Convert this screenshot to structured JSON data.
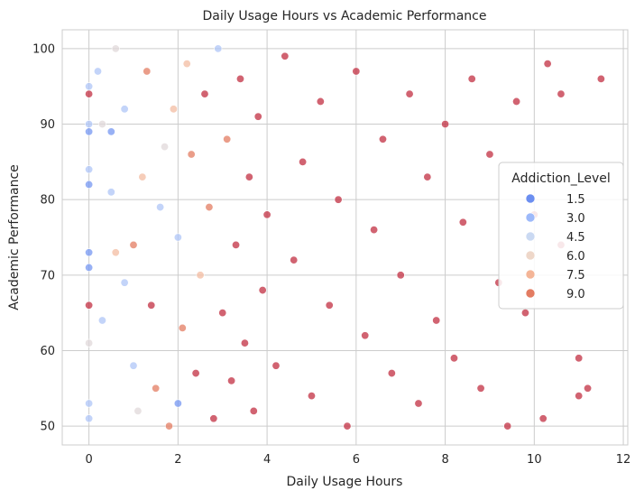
{
  "chart_data": {
    "type": "scatter",
    "title": "Daily Usage Hours vs Academic Performance",
    "xlabel": "Daily Usage Hours",
    "ylabel": "Academic Performance",
    "xlim": [
      -0.6,
      12.1
    ],
    "ylim": [
      47.5,
      102.5
    ],
    "x_ticks": [
      0,
      2,
      4,
      6,
      8,
      10,
      12
    ],
    "y_ticks": [
      50,
      60,
      70,
      80,
      90,
      100
    ],
    "grid": true,
    "legend": {
      "title": "Addiction_Level",
      "placement": "right",
      "entries": [
        {
          "label": "1.5",
          "color": "#6b8ef0"
        },
        {
          "label": "3.0",
          "color": "#9db9fa"
        },
        {
          "label": "4.5",
          "color": "#cad9f2"
        },
        {
          "label": "6.0",
          "color": "#eed7c9"
        },
        {
          "label": "7.5",
          "color": "#f4b597"
        },
        {
          "label": "9.0",
          "color": "#e37c62"
        }
      ]
    },
    "color_scale": {
      "name": "coolwarm",
      "stops": [
        "#3b4cc0",
        "#6b8ef0",
        "#9db9fa",
        "#cad9f2",
        "#eed7c9",
        "#f4b597",
        "#e37c62",
        "#c43a48",
        "#b40426"
      ],
      "domain": [
        0,
        10
      ]
    },
    "points": [
      {
        "x": 0.0,
        "y": 51,
        "level": 3.0
      },
      {
        "x": 0.0,
        "y": 53,
        "level": 3.0
      },
      {
        "x": 0.0,
        "y": 61,
        "level": 4.5
      },
      {
        "x": 0.0,
        "y": 66,
        "level": 9.0
      },
      {
        "x": 0.0,
        "y": 71,
        "level": 1.5
      },
      {
        "x": 0.0,
        "y": 73,
        "level": 1.5
      },
      {
        "x": 0.0,
        "y": 82,
        "level": 1.5
      },
      {
        "x": 0.0,
        "y": 84,
        "level": 3.0
      },
      {
        "x": 0.0,
        "y": 89,
        "level": 1.5
      },
      {
        "x": 0.0,
        "y": 90,
        "level": 3.0
      },
      {
        "x": 0.0,
        "y": 94,
        "level": 9.0
      },
      {
        "x": 0.0,
        "y": 95,
        "level": 3.0
      },
      {
        "x": 0.2,
        "y": 97,
        "level": 3.0
      },
      {
        "x": 0.3,
        "y": 64,
        "level": 3.0
      },
      {
        "x": 0.3,
        "y": 90,
        "level": 4.5
      },
      {
        "x": 0.5,
        "y": 89,
        "level": 1.5
      },
      {
        "x": 0.5,
        "y": 81,
        "level": 3.0
      },
      {
        "x": 0.6,
        "y": 100,
        "level": 4.5
      },
      {
        "x": 0.6,
        "y": 73,
        "level": 6.0
      },
      {
        "x": 0.8,
        "y": 69,
        "level": 3.0
      },
      {
        "x": 0.8,
        "y": 92,
        "level": 3.0
      },
      {
        "x": 1.0,
        "y": 58,
        "level": 3.0
      },
      {
        "x": 1.0,
        "y": 74,
        "level": 7.5
      },
      {
        "x": 1.1,
        "y": 52,
        "level": 4.5
      },
      {
        "x": 1.2,
        "y": 83,
        "level": 6.0
      },
      {
        "x": 1.3,
        "y": 97,
        "level": 7.5
      },
      {
        "x": 1.4,
        "y": 66,
        "level": 9.0
      },
      {
        "x": 1.5,
        "y": 55,
        "level": 7.5
      },
      {
        "x": 1.6,
        "y": 79,
        "level": 3.0
      },
      {
        "x": 1.7,
        "y": 87,
        "level": 4.5
      },
      {
        "x": 1.8,
        "y": 50,
        "level": 7.5
      },
      {
        "x": 1.9,
        "y": 92,
        "level": 6.0
      },
      {
        "x": 2.0,
        "y": 53,
        "level": 1.5
      },
      {
        "x": 2.0,
        "y": 75,
        "level": 3.0
      },
      {
        "x": 2.1,
        "y": 63,
        "level": 7.5
      },
      {
        "x": 2.2,
        "y": 98,
        "level": 6.0
      },
      {
        "x": 2.3,
        "y": 86,
        "level": 7.5
      },
      {
        "x": 2.4,
        "y": 57,
        "level": 9.0
      },
      {
        "x": 2.5,
        "y": 70,
        "level": 6.0
      },
      {
        "x": 2.6,
        "y": 94,
        "level": 9.0
      },
      {
        "x": 2.7,
        "y": 79,
        "level": 7.5
      },
      {
        "x": 2.8,
        "y": 51,
        "level": 9.0
      },
      {
        "x": 2.9,
        "y": 100,
        "level": 3.0
      },
      {
        "x": 3.0,
        "y": 65,
        "level": 9.0
      },
      {
        "x": 3.1,
        "y": 88,
        "level": 7.5
      },
      {
        "x": 3.2,
        "y": 56,
        "level": 9.0
      },
      {
        "x": 3.3,
        "y": 74,
        "level": 9.0
      },
      {
        "x": 3.4,
        "y": 96,
        "level": 9.0
      },
      {
        "x": 3.5,
        "y": 61,
        "level": 9.0
      },
      {
        "x": 3.6,
        "y": 83,
        "level": 9.0
      },
      {
        "x": 3.7,
        "y": 52,
        "level": 9.0
      },
      {
        "x": 3.8,
        "y": 91,
        "level": 9.0
      },
      {
        "x": 3.9,
        "y": 68,
        "level": 9.0
      },
      {
        "x": 4.0,
        "y": 78,
        "level": 9.0
      },
      {
        "x": 4.2,
        "y": 58,
        "level": 9.0
      },
      {
        "x": 4.4,
        "y": 99,
        "level": 9.0
      },
      {
        "x": 4.6,
        "y": 72,
        "level": 9.0
      },
      {
        "x": 4.8,
        "y": 85,
        "level": 9.0
      },
      {
        "x": 5.0,
        "y": 54,
        "level": 9.0
      },
      {
        "x": 5.2,
        "y": 93,
        "level": 9.0
      },
      {
        "x": 5.4,
        "y": 66,
        "level": 9.0
      },
      {
        "x": 5.6,
        "y": 80,
        "level": 9.0
      },
      {
        "x": 5.8,
        "y": 50,
        "level": 9.0
      },
      {
        "x": 6.0,
        "y": 97,
        "level": 9.0
      },
      {
        "x": 6.2,
        "y": 62,
        "level": 9.0
      },
      {
        "x": 6.4,
        "y": 76,
        "level": 9.0
      },
      {
        "x": 6.6,
        "y": 88,
        "level": 9.0
      },
      {
        "x": 6.8,
        "y": 57,
        "level": 9.0
      },
      {
        "x": 7.0,
        "y": 70,
        "level": 9.0
      },
      {
        "x": 7.2,
        "y": 94,
        "level": 9.0
      },
      {
        "x": 7.4,
        "y": 53,
        "level": 9.0
      },
      {
        "x": 7.6,
        "y": 83,
        "level": 9.0
      },
      {
        "x": 7.8,
        "y": 64,
        "level": 9.0
      },
      {
        "x": 8.0,
        "y": 90,
        "level": 9.0
      },
      {
        "x": 8.2,
        "y": 59,
        "level": 9.0
      },
      {
        "x": 8.4,
        "y": 77,
        "level": 9.0
      },
      {
        "x": 8.6,
        "y": 96,
        "level": 9.0
      },
      {
        "x": 8.8,
        "y": 55,
        "level": 9.0
      },
      {
        "x": 9.0,
        "y": 86,
        "level": 9.0
      },
      {
        "x": 9.2,
        "y": 69,
        "level": 9.0
      },
      {
        "x": 9.4,
        "y": 50,
        "level": 9.0
      },
      {
        "x": 9.6,
        "y": 93,
        "level": 9.0
      },
      {
        "x": 9.8,
        "y": 65,
        "level": 9.0
      },
      {
        "x": 10.0,
        "y": 78,
        "level": 9.0
      },
      {
        "x": 10.2,
        "y": 51,
        "level": 9.0
      },
      {
        "x": 10.3,
        "y": 98,
        "level": 9.0
      },
      {
        "x": 10.6,
        "y": 94,
        "level": 9.0
      },
      {
        "x": 10.6,
        "y": 74,
        "level": 9.0
      },
      {
        "x": 11.0,
        "y": 59,
        "level": 9.0
      },
      {
        "x": 11.0,
        "y": 54,
        "level": 9.0
      },
      {
        "x": 11.2,
        "y": 55,
        "level": 9.0
      },
      {
        "x": 11.5,
        "y": 96,
        "level": 9.0
      }
    ]
  }
}
